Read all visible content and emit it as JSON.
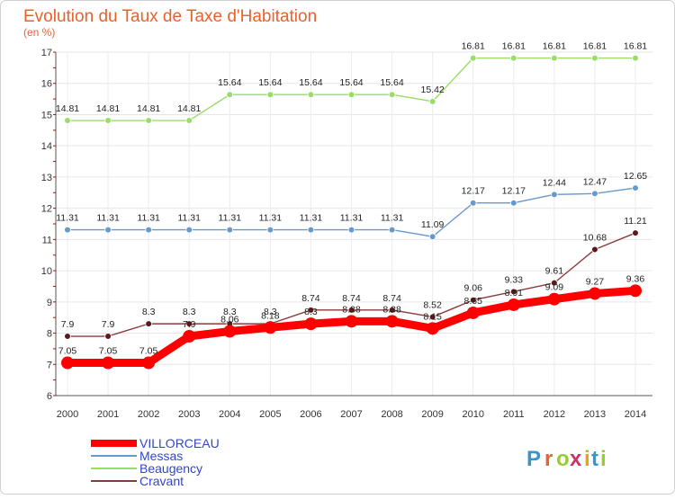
{
  "chart_data": {
    "type": "line",
    "title": "Evolution du Taux de Taxe d'Habitation",
    "subtitle": "(en %)",
    "x": [
      "2000",
      "2001",
      "2002",
      "2003",
      "2004",
      "2005",
      "2006",
      "2007",
      "2008",
      "2009",
      "2010",
      "2011",
      "2012",
      "2013",
      "2014"
    ],
    "y_ticks": [
      "6",
      "7",
      "8",
      "9",
      "10",
      "11",
      "12",
      "13",
      "14",
      "15",
      "16",
      "17"
    ],
    "ylim": [
      6,
      17
    ],
    "grid": true,
    "legend_position": "bottom-left",
    "series": [
      {
        "name": "VILLORCEAU",
        "color": "#ff0000",
        "values": [
          7.05,
          7.05,
          7.05,
          7.9,
          8.06,
          8.18,
          8.3,
          8.38,
          8.38,
          8.15,
          8.65,
          8.91,
          9.09,
          9.27,
          9.36
        ],
        "labels": [
          "7.05",
          "7.05",
          "7.05",
          "7.9",
          "8.06",
          "8.18",
          "8.3",
          "8.38",
          "8.38",
          "8.15",
          "8.65",
          "8.91",
          "9.09",
          "9.27",
          "9.36"
        ]
      },
      {
        "name": "Messas",
        "color": "#6699cc",
        "values": [
          11.31,
          11.31,
          11.31,
          11.31,
          11.31,
          11.31,
          11.31,
          11.31,
          11.31,
          11.09,
          12.17,
          12.17,
          12.44,
          12.47,
          12.65
        ],
        "labels": [
          "11.31",
          "11.31",
          "11.31",
          "11.31",
          "11.31",
          "11.31",
          "11.31",
          "11.31",
          "11.31",
          "11.09",
          "12.17",
          "12.17",
          "12.44",
          "12.47",
          "12.65"
        ]
      },
      {
        "name": "Beaugency",
        "color": "#99dd66",
        "values": [
          14.81,
          14.81,
          14.81,
          14.81,
          15.64,
          15.64,
          15.64,
          15.64,
          15.64,
          15.42,
          16.81,
          16.81,
          16.81,
          16.81,
          16.81
        ],
        "labels": [
          "14.81",
          "14.81",
          "14.81",
          "14.81",
          "15.64",
          "15.64",
          "15.64",
          "15.64",
          "15.64",
          "15.42",
          "16.81",
          "16.81",
          "16.81",
          "16.81",
          "16.81"
        ]
      },
      {
        "name": "Cravant",
        "color": "#8b3a3a",
        "values": [
          7.9,
          7.9,
          8.3,
          8.3,
          8.3,
          8.3,
          8.74,
          8.74,
          8.74,
          8.52,
          9.06,
          9.33,
          9.61,
          10.68,
          11.21
        ],
        "labels": [
          "7.9",
          "7.9",
          "8.3",
          "8.3",
          "8.3",
          "8.3",
          "8.74",
          "8.74",
          "8.74",
          "8.52",
          "9.06",
          "9.33",
          "9.61",
          "10.68",
          "11.21"
        ]
      }
    ]
  },
  "branding": {
    "logo_text": "Proxiti"
  }
}
